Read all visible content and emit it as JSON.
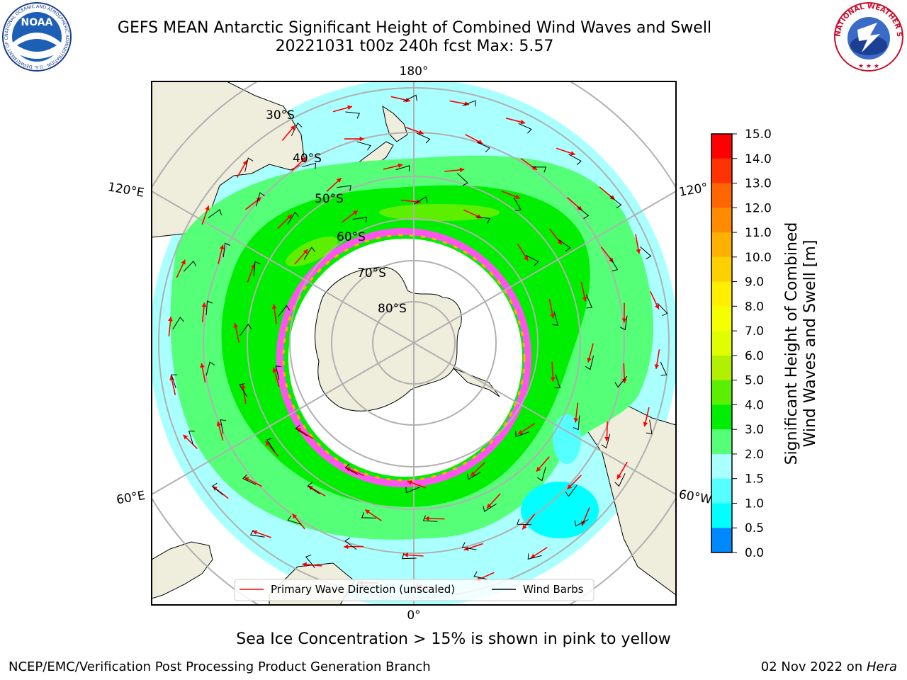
{
  "title_line1": "GEFS MEAN Antarctic Significant Height of Combined Wind Waves and Swell",
  "title_line2": "20221031 t00z 240h fcst   Max: 5.57",
  "noaa_logo_text": "NOAA",
  "noaa_ring_text": "NATIONAL OCEANIC AND ATMOSPHERIC ADMINISTRATION · U.S. DEPARTMENT OF COMMERCE",
  "nws_ring_text": "NATIONAL WEATHER SERVICE",
  "lon_labels": {
    "top": "180°",
    "bottom": "0°",
    "left_upper": "120°E",
    "left_lower": "60°E",
    "right_upper": "120°",
    "right_lower": "60°W"
  },
  "lat_labels": [
    "30°S",
    "40°S",
    "50°S",
    "60°S",
    "70°S",
    "80°S"
  ],
  "legend": {
    "wave_dir": "Primary Wave Direction (unscaled)",
    "wind_barbs": "Wind Barbs"
  },
  "colorbar": {
    "label_line1": "Significant Height of Combined",
    "label_line2": "Wind Waves and Swell [m]",
    "ticks": [
      "15.0",
      "14.0",
      "13.0",
      "12.0",
      "11.0",
      "10.0",
      "9.0",
      "8.0",
      "7.0",
      "6.0",
      "5.0",
      "4.0",
      "3.0",
      "2.0",
      "1.5",
      "1.0",
      "0.5",
      "0.0"
    ],
    "colors": [
      "#ff0000",
      "#ff3300",
      "#ff6600",
      "#ff8c00",
      "#ffb000",
      "#ffd000",
      "#ffee00",
      "#f5ff00",
      "#dfff00",
      "#b0f000",
      "#5cf000",
      "#00ee00",
      "#55ff77",
      "#aaffff",
      "#55ffff",
      "#00ffff",
      "#0088ff",
      "#0000ff"
    ]
  },
  "ice_note": "Sea Ice Concentration > 15% is shown in pink to yellow",
  "footer_left": "NCEP/EMC/Verification Post Processing Product Generation Branch",
  "footer_right_date": "02 Nov 2022 on ",
  "footer_right_host": "Hera"
}
